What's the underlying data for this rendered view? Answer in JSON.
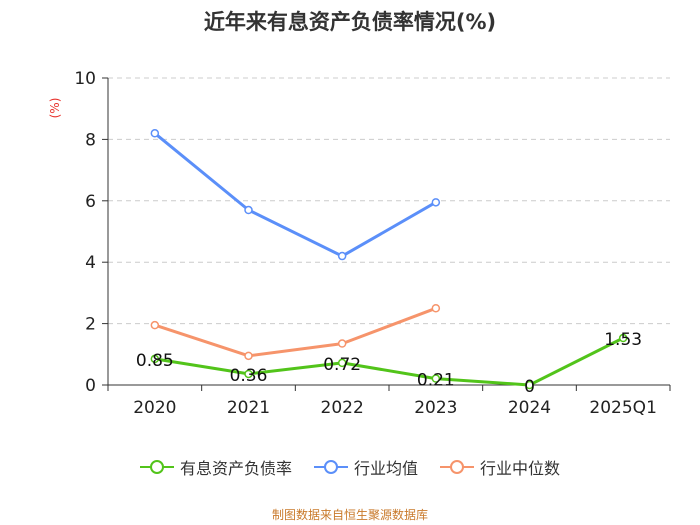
{
  "title": "近年来有息资产负债率情况(%)",
  "unit_label": "(%)",
  "source": "制图数据来自恒生聚源数据库",
  "chart_data": {
    "type": "line",
    "title": "近年来有息资产负债率情况(%)",
    "ylabel": "(%)",
    "xlabel": "",
    "categories": [
      "2020",
      "2021",
      "2022",
      "2023",
      "2024",
      "2025Q1"
    ],
    "ylim": [
      0,
      10
    ],
    "yticks": [
      0,
      2,
      4,
      6,
      8,
      10
    ],
    "grid": "horizontal-dashed",
    "legend_position": "bottom",
    "series": [
      {
        "name": "有息资产负债率",
        "color": "#52c41a",
        "values": [
          0.85,
          0.36,
          0.72,
          0.21,
          0,
          1.53
        ],
        "labels": [
          "0.85",
          "0.36",
          "0.72",
          "0.21",
          "0",
          "1.53"
        ]
      },
      {
        "name": "行业均值",
        "color": "#5b8ff9",
        "values": [
          8.2,
          5.7,
          4.2,
          5.95,
          null,
          null
        ],
        "labels": []
      },
      {
        "name": "行业中位数",
        "color": "#f6946b",
        "values": [
          1.95,
          0.95,
          1.35,
          2.5,
          null,
          null
        ],
        "labels": []
      }
    ]
  }
}
